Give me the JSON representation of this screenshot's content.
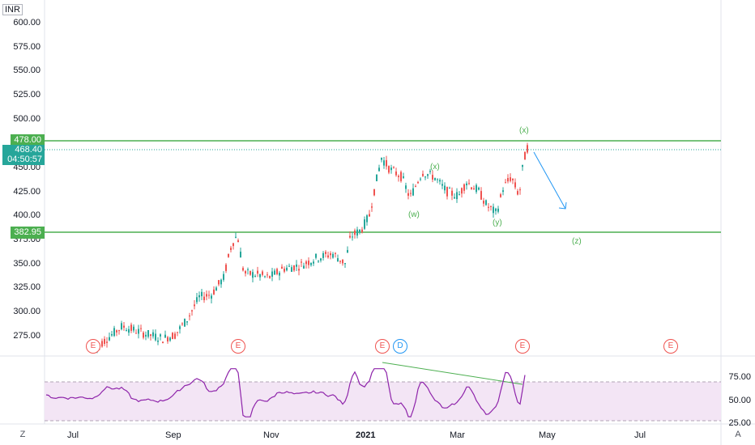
{
  "currency": "INR",
  "price_axis": {
    "ticks": [
      "600.00",
      "575.00",
      "550.00",
      "525.00",
      "500.00",
      "450.00",
      "425.00",
      "400.00",
      "375.00",
      "350.00",
      "325.00",
      "300.00",
      "275.00"
    ]
  },
  "levels": {
    "upper": "478.00",
    "current_price": "468.40",
    "countdown": "04:50:57",
    "lower": "382.95"
  },
  "rsi_axis": {
    "ticks": [
      "75.00",
      "50.00",
      "25.00"
    ]
  },
  "time_axis": {
    "labels": [
      "Jul",
      "Sep",
      "Nov",
      "2021",
      "Mar",
      "May",
      "Jul"
    ]
  },
  "event_markers": [
    "E",
    "E",
    "E",
    "D",
    "E",
    "E"
  ],
  "wave_labels": [
    "(x)",
    "(x)",
    "(w)",
    "(y)",
    "(z)"
  ],
  "corner_buttons": {
    "left": "Z",
    "right": "A"
  },
  "colors": {
    "up": "#26a69a",
    "down": "#ef5350",
    "level_line": "#4caf50",
    "current_tag": "#26a69a",
    "rsi_line": "#8e24aa",
    "rsi_band": "#f3e5f5",
    "arrow": "#2196f3",
    "earnings": "#ef5350",
    "dividend": "#2196f3",
    "divergence": "#4caf50"
  }
}
